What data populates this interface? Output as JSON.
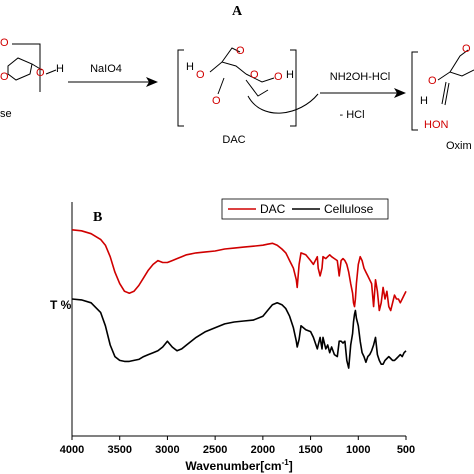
{
  "scheme": {
    "panel_label": "A",
    "left_fragment": "se",
    "reagent_1": "NaIO4",
    "dac_label": "DAC",
    "reagent_2": "NH2OH-HCl",
    "byproduct": "- HCl",
    "oxime_label": "Oxim",
    "oxime_group": "HON",
    "h_atom": "H",
    "o_atom": "O",
    "ho_atom": "HO",
    "bracket_o": "O"
  },
  "chart_data": {
    "type": "line",
    "panel_label": "B",
    "xlabel": "Wavenumber[cm",
    "xlabel_sup": "-1",
    "xlabel_end": "]",
    "ylabel": "T %",
    "xlim": [
      4000,
      500
    ],
    "xticks": [
      4000,
      3500,
      3000,
      2500,
      2000,
      1500,
      1000,
      500
    ],
    "grid": false,
    "legend_position": "top-right",
    "colors": {
      "DAC": "#d00000",
      "Cellulose": "#000000"
    },
    "series": [
      {
        "name": "DAC",
        "x": [
          4000,
          3900,
          3800,
          3700,
          3650,
          3600,
          3550,
          3500,
          3450,
          3400,
          3350,
          3300,
          3250,
          3200,
          3150,
          3100,
          3050,
          3000,
          2950,
          2900,
          2850,
          2800,
          2700,
          2600,
          2500,
          2400,
          2300,
          2200,
          2100,
          2000,
          1950,
          1900,
          1850,
          1800,
          1760,
          1740,
          1720,
          1700,
          1680,
          1650,
          1640,
          1620,
          1600,
          1550,
          1500,
          1470,
          1430,
          1420,
          1400,
          1380,
          1370,
          1340,
          1320,
          1300,
          1280,
          1250,
          1220,
          1200,
          1180,
          1160,
          1140,
          1120,
          1100,
          1080,
          1060,
          1050,
          1040,
          1030,
          1020,
          1000,
          980,
          960,
          940,
          920,
          900,
          880,
          860,
          840,
          820,
          800,
          780,
          760,
          740,
          720,
          700,
          680,
          660,
          640,
          620,
          600,
          580,
          560,
          540,
          520,
          500
        ],
        "y": [
          98,
          97.5,
          96,
          93,
          90,
          84,
          76,
          70,
          66,
          65,
          66,
          69,
          73,
          77,
          80,
          82,
          81,
          81,
          82,
          83,
          84,
          85,
          86,
          86.5,
          87,
          88,
          88.5,
          89,
          89.5,
          90,
          90.5,
          91,
          90,
          88,
          86,
          84,
          82,
          80,
          78,
          72,
          68,
          80,
          86,
          85,
          82,
          80,
          84,
          78,
          74,
          78,
          84,
          83,
          84,
          85,
          84,
          83,
          82,
          74,
          82,
          83,
          82,
          80,
          76,
          70,
          65,
          60,
          58,
          62,
          70,
          80,
          84,
          82,
          78,
          76,
          74,
          72,
          70,
          58,
          72,
          66,
          56,
          60,
          68,
          62,
          66,
          58,
          56,
          60,
          64,
          62,
          62,
          60,
          62,
          64,
          66
        ]
      },
      {
        "name": "Cellulose",
        "x": [
          4000,
          3900,
          3800,
          3700,
          3650,
          3600,
          3550,
          3500,
          3450,
          3400,
          3350,
          3300,
          3250,
          3200,
          3150,
          3100,
          3050,
          3000,
          2950,
          2900,
          2850,
          2800,
          2700,
          2600,
          2500,
          2400,
          2300,
          2200,
          2100,
          2000,
          1950,
          1900,
          1850,
          1800,
          1760,
          1740,
          1720,
          1700,
          1680,
          1650,
          1640,
          1620,
          1600,
          1550,
          1500,
          1470,
          1430,
          1420,
          1400,
          1380,
          1370,
          1340,
          1320,
          1300,
          1280,
          1250,
          1220,
          1200,
          1180,
          1160,
          1140,
          1120,
          1100,
          1080,
          1060,
          1050,
          1040,
          1030,
          1020,
          1000,
          980,
          960,
          940,
          920,
          900,
          880,
          860,
          840,
          820,
          800,
          780,
          760,
          740,
          720,
          700,
          680,
          660,
          640,
          620,
          600,
          580,
          560,
          540,
          520,
          500
        ],
        "y": [
          62,
          61.5,
          60,
          55,
          48,
          38,
          32,
          30,
          29.5,
          29.5,
          30,
          30.5,
          32,
          33,
          34,
          35,
          37,
          40,
          37,
          35,
          36,
          38,
          42,
          45,
          47,
          49,
          50,
          50.5,
          51,
          53,
          56,
          59,
          60,
          59,
          57,
          55,
          53,
          50,
          47,
          40,
          37,
          41,
          48,
          46,
          45,
          42,
          36,
          38,
          42,
          36,
          42,
          36,
          38,
          34,
          37,
          33,
          32,
          40,
          40,
          39,
          40,
          30,
          26,
          38,
          44,
          50,
          54,
          56,
          52,
          48,
          40,
          34,
          32,
          29,
          32,
          33,
          35,
          38,
          42,
          33,
          30,
          28,
          28,
          30,
          31,
          32,
          31,
          30,
          30,
          31,
          32,
          33,
          32,
          34,
          35
        ]
      }
    ]
  }
}
